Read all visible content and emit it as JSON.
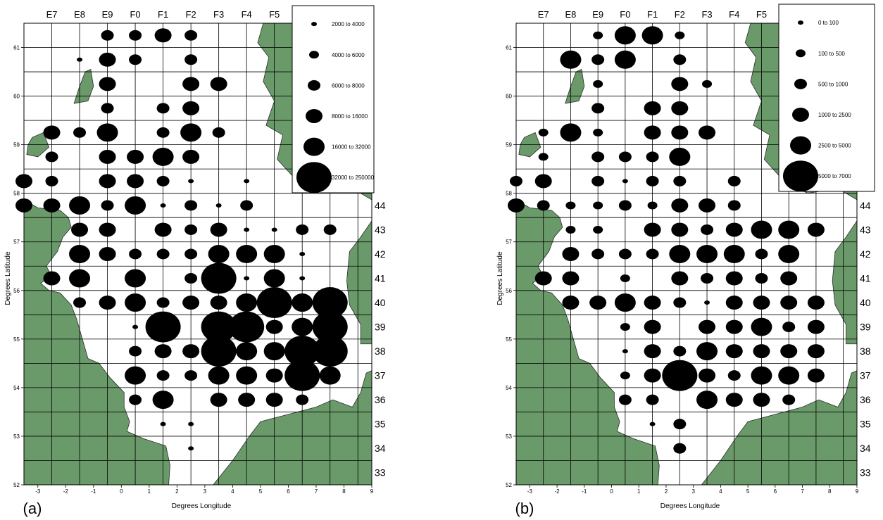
{
  "colors": {
    "land": "#6a9a6a",
    "coast": "#2c2c2c",
    "grid": "#000000",
    "bubble": "#000000"
  },
  "axes": {
    "x_label": "Degrees Longitude",
    "y_label": "Degrees Latitude",
    "x_ticks": [
      "-3",
      "-2",
      "-1",
      "0",
      "1",
      "2",
      "3",
      "4",
      "5",
      "6",
      "7",
      "8",
      "9"
    ],
    "y_ticks": [
      "52",
      "53",
      "54",
      "55",
      "56",
      "57",
      "58",
      "59",
      "60",
      "61"
    ],
    "rect_cols": [
      "E7",
      "E8",
      "E9",
      "F0",
      "F1",
      "F2",
      "F3",
      "F4",
      "F5"
    ],
    "rect_rows": [
      "44",
      "43",
      "42",
      "41",
      "40",
      "39",
      "38",
      "37",
      "36",
      "35",
      "34",
      "33"
    ],
    "lon_range": [
      -3.5,
      9
    ],
    "lat_range": [
      52,
      61.5
    ]
  },
  "chart_data": [
    {
      "type": "scatter",
      "panel_label": "(a)",
      "legend": [
        {
          "label": "2000  to  4000",
          "class": 1
        },
        {
          "label": "4000  to  6000",
          "class": 2
        },
        {
          "label": "6000  to  8000",
          "class": 3
        },
        {
          "label": "8000  to  16000",
          "class": 4
        },
        {
          "label": "16000  to  32000",
          "class": 5
        },
        {
          "label": "32000  to  250000",
          "class": 6
        }
      ],
      "points": [
        [
          -0.5,
          61.25,
          3
        ],
        [
          0.5,
          61.25,
          3
        ],
        [
          1.5,
          61.25,
          4
        ],
        [
          2.5,
          61.25,
          3
        ],
        [
          -1.5,
          60.75,
          1
        ],
        [
          -0.5,
          60.75,
          4
        ],
        [
          0.5,
          60.75,
          3
        ],
        [
          2.5,
          60.75,
          3
        ],
        [
          -0.5,
          60.25,
          4
        ],
        [
          2.5,
          60.25,
          4
        ],
        [
          3.5,
          60.25,
          4
        ],
        [
          -0.5,
          59.75,
          3
        ],
        [
          1.5,
          59.75,
          3
        ],
        [
          2.5,
          59.75,
          4
        ],
        [
          -2.5,
          59.25,
          4
        ],
        [
          -1.5,
          59.25,
          3
        ],
        [
          -0.5,
          59.25,
          5
        ],
        [
          1.5,
          59.25,
          3
        ],
        [
          2.5,
          59.25,
          5
        ],
        [
          3.5,
          59.25,
          3
        ],
        [
          -2.5,
          58.75,
          3
        ],
        [
          -0.5,
          58.75,
          4
        ],
        [
          0.5,
          58.75,
          4
        ],
        [
          1.5,
          58.75,
          5
        ],
        [
          2.5,
          58.75,
          4
        ],
        [
          -3.5,
          58.25,
          4
        ],
        [
          -2.5,
          58.25,
          3
        ],
        [
          -0.5,
          58.25,
          4
        ],
        [
          0.5,
          58.25,
          4
        ],
        [
          1.5,
          58.25,
          3
        ],
        [
          2.5,
          58.25,
          1
        ],
        [
          4.5,
          58.25,
          1
        ],
        [
          -3.5,
          57.75,
          4
        ],
        [
          -2.5,
          57.75,
          4
        ],
        [
          -1.5,
          57.75,
          5
        ],
        [
          -0.5,
          57.75,
          3
        ],
        [
          0.5,
          57.75,
          5
        ],
        [
          1.5,
          57.75,
          1
        ],
        [
          2.5,
          57.75,
          3
        ],
        [
          3.5,
          57.75,
          1
        ],
        [
          4.5,
          57.75,
          3
        ],
        [
          -1.5,
          57.25,
          4
        ],
        [
          -0.5,
          57.25,
          4
        ],
        [
          1.5,
          57.25,
          4
        ],
        [
          2.5,
          57.25,
          3
        ],
        [
          3.5,
          57.25,
          4
        ],
        [
          4.5,
          57.25,
          1
        ],
        [
          5.5,
          57.25,
          1
        ],
        [
          6.5,
          57.25,
          3
        ],
        [
          7.5,
          57.25,
          3
        ],
        [
          -1.5,
          56.75,
          5
        ],
        [
          -0.5,
          56.75,
          4
        ],
        [
          0.5,
          56.75,
          3
        ],
        [
          1.5,
          56.75,
          3
        ],
        [
          2.5,
          56.75,
          3
        ],
        [
          3.5,
          56.75,
          5
        ],
        [
          4.5,
          56.75,
          5
        ],
        [
          5.5,
          56.75,
          5
        ],
        [
          6.5,
          56.75,
          1
        ],
        [
          -2.5,
          56.25,
          4
        ],
        [
          -1.5,
          56.25,
          5
        ],
        [
          0.5,
          56.25,
          5
        ],
        [
          2.5,
          56.25,
          3
        ],
        [
          3.5,
          56.25,
          6
        ],
        [
          4.5,
          56.25,
          1
        ],
        [
          5.5,
          56.25,
          5
        ],
        [
          6.5,
          56.25,
          1
        ],
        [
          -1.5,
          55.75,
          3
        ],
        [
          -0.5,
          55.75,
          4
        ],
        [
          0.5,
          55.75,
          5
        ],
        [
          1.5,
          55.75,
          3
        ],
        [
          2.5,
          55.75,
          4
        ],
        [
          3.5,
          55.75,
          4
        ],
        [
          4.5,
          55.75,
          5
        ],
        [
          5.5,
          55.75,
          6
        ],
        [
          6.5,
          55.75,
          5
        ],
        [
          7.5,
          55.75,
          6
        ],
        [
          0.5,
          55.25,
          1
        ],
        [
          1.5,
          55.25,
          6
        ],
        [
          3.5,
          55.25,
          6
        ],
        [
          4.5,
          55.25,
          6
        ],
        [
          5.5,
          55.25,
          4
        ],
        [
          6.5,
          55.25,
          5
        ],
        [
          7.5,
          55.25,
          6
        ],
        [
          0.5,
          54.75,
          3
        ],
        [
          1.5,
          54.75,
          4
        ],
        [
          2.5,
          54.75,
          4
        ],
        [
          3.5,
          54.75,
          6
        ],
        [
          4.5,
          54.75,
          5
        ],
        [
          5.5,
          54.75,
          5
        ],
        [
          6.5,
          54.75,
          6
        ],
        [
          7.5,
          54.75,
          6
        ],
        [
          0.5,
          54.25,
          5
        ],
        [
          1.5,
          54.25,
          3
        ],
        [
          2.5,
          54.25,
          3
        ],
        [
          3.5,
          54.25,
          5
        ],
        [
          4.5,
          54.25,
          5
        ],
        [
          5.5,
          54.25,
          4
        ],
        [
          6.5,
          54.25,
          6
        ],
        [
          7.5,
          54.25,
          5
        ],
        [
          0.5,
          53.75,
          3
        ],
        [
          1.5,
          53.75,
          5
        ],
        [
          3.5,
          53.75,
          4
        ],
        [
          4.5,
          53.75,
          4
        ],
        [
          5.5,
          53.75,
          4
        ],
        [
          6.5,
          53.75,
          3
        ],
        [
          1.5,
          53.25,
          1
        ],
        [
          2.5,
          53.25,
          1
        ],
        [
          2.5,
          52.75,
          1
        ]
      ]
    },
    {
      "type": "scatter",
      "panel_label": "(b)",
      "legend": [
        {
          "label": "0  to  100",
          "class": 1
        },
        {
          "label": "100  to  500",
          "class": 2
        },
        {
          "label": "500  to  1000",
          "class": 3
        },
        {
          "label": "1000  to  2500",
          "class": 4
        },
        {
          "label": "2500  to  5000",
          "class": 5
        },
        {
          "label": "5000  to  7000",
          "class": 6
        }
      ],
      "points": [
        [
          -0.5,
          61.25,
          2
        ],
        [
          0.5,
          61.25,
          5
        ],
        [
          1.5,
          61.25,
          5
        ],
        [
          2.5,
          61.25,
          2
        ],
        [
          -1.5,
          60.75,
          5
        ],
        [
          -0.5,
          60.75,
          3
        ],
        [
          0.5,
          60.75,
          5
        ],
        [
          2.5,
          60.75,
          3
        ],
        [
          -0.5,
          60.25,
          2
        ],
        [
          2.5,
          60.25,
          4
        ],
        [
          3.5,
          60.25,
          2
        ],
        [
          -0.5,
          59.75,
          3
        ],
        [
          1.5,
          59.75,
          4
        ],
        [
          2.5,
          59.75,
          4
        ],
        [
          -2.5,
          59.25,
          2
        ],
        [
          -1.5,
          59.25,
          5
        ],
        [
          -0.5,
          59.25,
          2
        ],
        [
          1.5,
          59.25,
          4
        ],
        [
          2.5,
          59.25,
          4
        ],
        [
          3.5,
          59.25,
          4
        ],
        [
          -2.5,
          58.75,
          2
        ],
        [
          -0.5,
          58.75,
          3
        ],
        [
          0.5,
          58.75,
          3
        ],
        [
          1.5,
          58.75,
          3
        ],
        [
          2.5,
          58.75,
          5
        ],
        [
          -3.5,
          58.25,
          3
        ],
        [
          -2.5,
          58.25,
          4
        ],
        [
          -0.5,
          58.25,
          3
        ],
        [
          0.5,
          58.25,
          1
        ],
        [
          1.5,
          58.25,
          3
        ],
        [
          2.5,
          58.25,
          3
        ],
        [
          4.5,
          58.25,
          3
        ],
        [
          -3.5,
          57.75,
          4
        ],
        [
          -2.5,
          57.75,
          3
        ],
        [
          -1.5,
          57.75,
          2
        ],
        [
          -0.5,
          57.75,
          2
        ],
        [
          0.5,
          57.75,
          3
        ],
        [
          1.5,
          57.75,
          2
        ],
        [
          2.5,
          57.75,
          4
        ],
        [
          3.5,
          57.75,
          4
        ],
        [
          4.5,
          57.75,
          3
        ],
        [
          -1.5,
          57.25,
          2
        ],
        [
          -0.5,
          57.25,
          2
        ],
        [
          1.5,
          57.25,
          4
        ],
        [
          2.5,
          57.25,
          4
        ],
        [
          3.5,
          57.25,
          3
        ],
        [
          4.5,
          57.25,
          4
        ],
        [
          5.5,
          57.25,
          5
        ],
        [
          6.5,
          57.25,
          5
        ],
        [
          7.5,
          57.25,
          4
        ],
        [
          -1.5,
          56.75,
          4
        ],
        [
          -0.5,
          56.75,
          3
        ],
        [
          0.5,
          56.75,
          3
        ],
        [
          1.5,
          56.75,
          3
        ],
        [
          2.5,
          56.75,
          5
        ],
        [
          3.5,
          56.75,
          5
        ],
        [
          4.5,
          56.75,
          5
        ],
        [
          5.5,
          56.75,
          3
        ],
        [
          6.5,
          56.75,
          5
        ],
        [
          -2.5,
          56.25,
          4
        ],
        [
          -1.5,
          56.25,
          4
        ],
        [
          0.5,
          56.25,
          2
        ],
        [
          2.5,
          56.25,
          4
        ],
        [
          3.5,
          56.25,
          3
        ],
        [
          4.5,
          56.25,
          4
        ],
        [
          5.5,
          56.25,
          3
        ],
        [
          6.5,
          56.25,
          4
        ],
        [
          -1.5,
          55.75,
          4
        ],
        [
          -0.5,
          55.75,
          4
        ],
        [
          0.5,
          55.75,
          5
        ],
        [
          1.5,
          55.75,
          4
        ],
        [
          2.5,
          55.75,
          3
        ],
        [
          3.5,
          55.75,
          1
        ],
        [
          4.5,
          55.75,
          4
        ],
        [
          5.5,
          55.75,
          4
        ],
        [
          6.5,
          55.75,
          4
        ],
        [
          7.5,
          55.75,
          4
        ],
        [
          0.5,
          55.25,
          2
        ],
        [
          1.5,
          55.25,
          4
        ],
        [
          3.5,
          55.25,
          4
        ],
        [
          4.5,
          55.25,
          4
        ],
        [
          5.5,
          55.25,
          5
        ],
        [
          6.5,
          55.25,
          3
        ],
        [
          7.5,
          55.25,
          4
        ],
        [
          0.5,
          54.75,
          1
        ],
        [
          1.5,
          54.75,
          4
        ],
        [
          2.5,
          54.75,
          3
        ],
        [
          3.5,
          54.75,
          5
        ],
        [
          4.5,
          54.75,
          4
        ],
        [
          5.5,
          54.75,
          4
        ],
        [
          6.5,
          54.75,
          4
        ],
        [
          7.5,
          54.75,
          4
        ],
        [
          0.5,
          54.25,
          2
        ],
        [
          1.5,
          54.25,
          4
        ],
        [
          2.5,
          54.25,
          6
        ],
        [
          3.5,
          54.25,
          4
        ],
        [
          4.5,
          54.25,
          3
        ],
        [
          5.5,
          54.25,
          5
        ],
        [
          6.5,
          54.25,
          5
        ],
        [
          7.5,
          54.25,
          4
        ],
        [
          0.5,
          53.75,
          3
        ],
        [
          1.5,
          53.75,
          3
        ],
        [
          3.5,
          53.75,
          5
        ],
        [
          4.5,
          53.75,
          4
        ],
        [
          5.5,
          53.75,
          4
        ],
        [
          6.5,
          53.75,
          3
        ],
        [
          1.5,
          53.25,
          1
        ],
        [
          2.5,
          53.25,
          3
        ],
        [
          2.5,
          52.75,
          3
        ]
      ]
    }
  ]
}
